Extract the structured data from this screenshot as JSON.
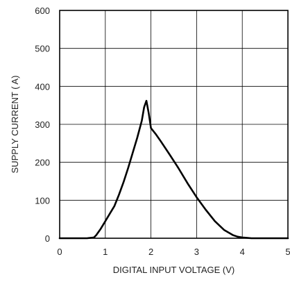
{
  "chart_data": {
    "type": "line",
    "title": "",
    "xlabel": "DIGITAL INPUT VOLTAGE (V)",
    "ylabel": "SUPPLY CURRENT (   A)",
    "xlim": [
      0,
      5
    ],
    "ylim": [
      0,
      600
    ],
    "x_ticks": [
      0,
      1,
      2,
      3,
      4,
      5
    ],
    "y_ticks": [
      0,
      100,
      200,
      300,
      400,
      500,
      600
    ],
    "grid": true,
    "line_color": "#000000",
    "series": [
      {
        "x": [
          0,
          0.6,
          0.75,
          0.8,
          0.9,
          1.0,
          1.1,
          1.2,
          1.3,
          1.4,
          1.5,
          1.6,
          1.7,
          1.8,
          1.85,
          1.9,
          1.95,
          2.0,
          2.1,
          2.2,
          2.4,
          2.6,
          2.8,
          3.0,
          3.2,
          3.4,
          3.6,
          3.8,
          3.9,
          4.0,
          4.1,
          4.2,
          4.4,
          5.0
        ],
        "y": [
          0,
          0,
          2,
          8,
          25,
          45,
          65,
          85,
          115,
          148,
          185,
          225,
          265,
          310,
          345,
          362,
          330,
          290,
          275,
          258,
          222,
          185,
          145,
          108,
          75,
          45,
          22,
          8,
          4,
          2,
          1,
          0,
          0,
          0
        ]
      }
    ]
  }
}
